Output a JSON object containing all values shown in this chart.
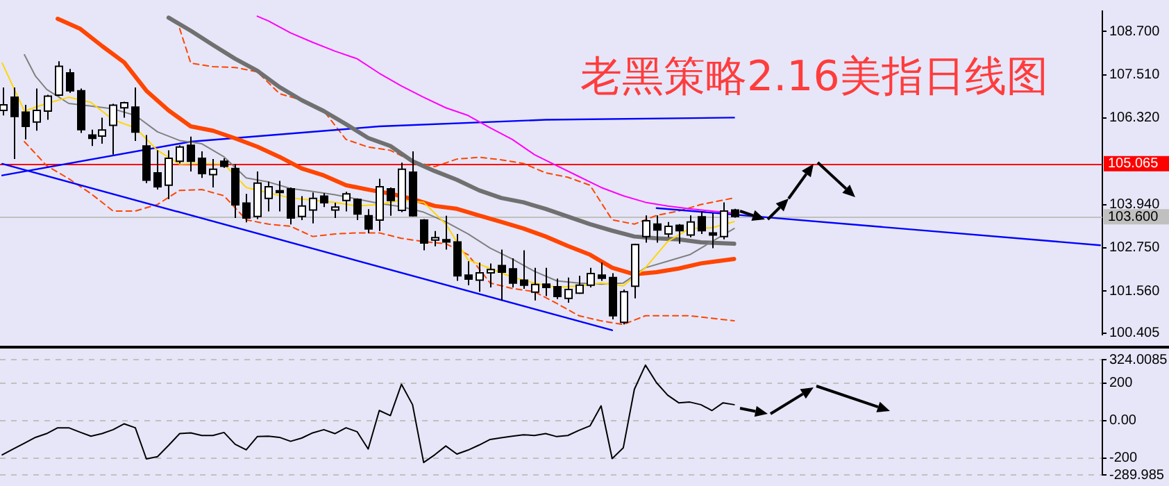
{
  "chart_data": [
    {
      "type": "candlestick",
      "title": "老黑策略2.16美指日线图",
      "categories": [
        null,
        null,
        null,
        null,
        null,
        null,
        null,
        null,
        null,
        null,
        null,
        null,
        null,
        null,
        null,
        null,
        null,
        null,
        null,
        null,
        null,
        null,
        null,
        null,
        null,
        null,
        null,
        null,
        null,
        null,
        null,
        null,
        null,
        null,
        null,
        null,
        null,
        null,
        null,
        null,
        null,
        null,
        null,
        null,
        null,
        null,
        null,
        null,
        null,
        null,
        null,
        null,
        null,
        null,
        null,
        null,
        null,
        null,
        null,
        null,
        null,
        null,
        null,
        null,
        null,
        null,
        null,
        null,
        null,
        null,
        null,
        null,
        null,
        null,
        null,
        null,
        null,
        null,
        null,
        null,
        null,
        null,
        null,
        null,
        null,
        null,
        null,
        null,
        null,
        null,
        null,
        null,
        null,
        null,
        null,
        null,
        null,
        null,
        null,
        null
      ],
      "ohlc": [
        [
          106.53,
          107.16,
          106.39,
          106.68
        ],
        [
          106.89,
          107.16,
          105.19,
          106.36
        ],
        [
          106.48,
          106.68,
          105.73,
          106.09
        ],
        [
          106.21,
          107.13,
          105.97,
          106.53
        ],
        [
          106.51,
          106.96,
          106.27,
          106.92
        ],
        [
          106.95,
          107.88,
          106.92,
          107.74
        ],
        [
          107.56,
          107.67,
          107.01,
          107.07
        ],
        [
          107.07,
          107.13,
          105.91,
          106.0
        ],
        [
          105.85,
          106.0,
          105.55,
          105.76
        ],
        [
          105.82,
          106.33,
          105.61,
          105.99
        ],
        [
          106.12,
          106.71,
          105.31,
          106.67
        ],
        [
          106.6,
          106.77,
          106.33,
          106.74
        ],
        [
          106.62,
          107.16,
          105.69,
          105.93
        ],
        [
          105.55,
          105.85,
          104.53,
          104.61
        ],
        [
          104.81,
          105.43,
          104.35,
          104.43
        ],
        [
          104.47,
          105.43,
          104.09,
          105.21
        ],
        [
          105.13,
          105.57,
          105.07,
          105.52
        ],
        [
          105.57,
          105.81,
          104.85,
          105.13
        ],
        [
          105.21,
          105.4,
          104.67,
          104.79
        ],
        [
          104.76,
          105.19,
          104.41,
          104.91
        ],
        [
          105.13,
          105.21,
          104.95,
          104.99
        ],
        [
          104.93,
          105.05,
          103.57,
          103.93
        ],
        [
          103.98,
          104.23,
          103.45,
          103.57
        ],
        [
          103.61,
          104.85,
          103.54,
          104.53
        ],
        [
          104.11,
          104.57,
          103.75,
          104.43
        ],
        [
          104.32,
          104.59,
          103.75,
          104.27
        ],
        [
          104.37,
          104.41,
          103.39,
          103.57
        ],
        [
          103.61,
          104.17,
          103.51,
          103.9
        ],
        [
          103.79,
          104.27,
          103.42,
          104.11
        ],
        [
          104.17,
          104.25,
          103.87,
          103.99
        ],
        [
          103.79,
          103.99,
          103.57,
          103.87
        ],
        [
          104.05,
          104.29,
          103.75,
          104.23
        ],
        [
          104.08,
          104.11,
          103.51,
          103.68
        ],
        [
          103.63,
          103.81,
          103.15,
          103.27
        ],
        [
          103.51,
          104.65,
          103.21,
          104.43
        ],
        [
          104.37,
          104.41,
          103.63,
          104.05
        ],
        [
          103.78,
          105.09,
          103.73,
          104.91
        ],
        [
          104.83,
          105.4,
          103.61,
          103.63
        ],
        [
          103.51,
          103.54,
          102.68,
          102.88
        ],
        [
          102.96,
          103.21,
          102.79,
          103.03
        ],
        [
          102.97,
          103.63,
          102.7,
          102.91
        ],
        [
          102.91,
          103.13,
          101.84,
          101.98
        ],
        [
          102.0,
          102.38,
          101.72,
          101.89
        ],
        [
          101.86,
          102.34,
          101.54,
          102.06
        ],
        [
          102.06,
          102.32,
          101.66,
          102.15
        ],
        [
          102.26,
          102.7,
          101.3,
          102.08
        ],
        [
          102.17,
          102.46,
          101.66,
          101.78
        ],
        [
          101.86,
          102.68,
          101.62,
          101.72
        ],
        [
          101.53,
          102.2,
          101.3,
          101.74
        ],
        [
          101.75,
          102.2,
          101.42,
          101.66
        ],
        [
          101.68,
          101.9,
          101.34,
          101.41
        ],
        [
          101.36,
          101.93,
          101.24,
          101.6
        ],
        [
          101.5,
          101.98,
          101.48,
          101.72
        ],
        [
          101.72,
          102.2,
          101.66,
          102.04
        ],
        [
          102.0,
          102.34,
          101.84,
          101.91
        ],
        [
          101.93,
          102.05,
          100.78,
          100.88
        ],
        [
          100.7,
          101.6,
          100.64,
          101.54
        ],
        [
          101.69,
          102.86,
          101.36,
          102.84
        ],
        [
          103.06,
          103.64,
          102.89,
          103.49
        ],
        [
          103.4,
          103.64,
          102.89,
          103.24
        ],
        [
          103.13,
          103.46,
          103.04,
          103.34
        ],
        [
          103.37,
          103.4,
          102.86,
          103.22
        ],
        [
          103.1,
          103.64,
          103.04,
          103.46
        ],
        [
          103.6,
          103.76,
          103.13,
          103.22
        ],
        [
          103.16,
          103.7,
          102.74,
          103.1
        ],
        [
          103.06,
          104.0,
          102.98,
          103.76
        ],
        [
          103.79,
          103.82,
          103.58,
          103.61
        ],
        null,
        null,
        null,
        null,
        null,
        null,
        null,
        null,
        null,
        null,
        null,
        null,
        null,
        null,
        null,
        null,
        null,
        null,
        null,
        null,
        null,
        null,
        null,
        null,
        null,
        null,
        null,
        null,
        null,
        null,
        null,
        null,
        null
      ],
      "series": [
        {
          "type": "line",
          "color": "#ffd700",
          "values": [
            107.83,
            null,
            106.51,
            null,
            106.72,
            null,
            106.89,
            null,
            106.75,
            null,
            106.27,
            null,
            106.05,
            null,
            105.43,
            null,
            105.05,
            null,
            105.07,
            null,
            105.05,
            null,
            104.41,
            null,
            104.26,
            null,
            104.12,
            null,
            104.06,
            null,
            104.0,
            null,
            103.9,
            null,
            103.94,
            null,
            104.06,
            null,
            104.0,
            null,
            103.4,
            null,
            102.42,
            null,
            102.18,
            null,
            101.94,
            null,
            101.78,
            null,
            101.66,
            null,
            101.7,
            null,
            101.78,
            null,
            101.7,
            null,
            102.2,
            null,
            102.92,
            null,
            103.28,
            null,
            103.3,
            null,
            103.47,
            null,
            null,
            null,
            null,
            null,
            null,
            null,
            null,
            null,
            null,
            null,
            null,
            null,
            null,
            null,
            null,
            null,
            null,
            null,
            null,
            null,
            null,
            null,
            null,
            null,
            null,
            null,
            null,
            null,
            null,
            null,
            null,
            null
          ]
        },
        {
          "type": "line",
          "color": "#808080",
          "values": [
            null,
            null,
            108.06,
            107.47,
            107.11,
            null,
            106.72,
            null,
            106.65,
            null,
            106.57,
            null,
            106.39,
            null,
            105.94,
            null,
            105.7,
            null,
            105.61,
            null,
            105.25,
            null,
            104.67,
            null,
            104.56,
            null,
            104.38,
            null,
            104.3,
            null,
            104.21,
            null,
            104.09,
            null,
            103.97,
            null,
            103.88,
            null,
            103.73,
            null,
            103.46,
            null,
            103.13,
            null,
            102.74,
            null,
            102.44,
            null,
            102.1,
            null,
            101.84,
            null,
            101.78,
            null,
            101.75,
            null,
            101.78,
            null,
            102.2,
            null,
            102.38,
            null,
            102.56,
            null,
            102.92,
            null,
            103.28,
            null,
            null,
            null,
            null,
            null,
            null,
            null,
            null,
            null,
            null,
            null,
            null,
            null,
            null,
            null,
            null,
            null,
            null,
            null,
            null,
            null,
            null,
            null,
            null,
            null,
            null,
            null,
            null,
            null,
            null,
            null,
            null,
            null
          ]
        },
        {
          "type": "line",
          "color": "#ff4500",
          "values": [
            null,
            null,
            null,
            null,
            null,
            109.05,
            null,
            108.78,
            null,
            108.3,
            null,
            107.85,
            null,
            107.07,
            null,
            106.53,
            null,
            106.09,
            null,
            105.97,
            null,
            105.76,
            null,
            105.53,
            null,
            105.25,
            null,
            104.93,
            null,
            104.74,
            null,
            104.47,
            null,
            104.35,
            null,
            104.24,
            null,
            104.09,
            null,
            103.9,
            null,
            103.82,
            null,
            103.64,
            null,
            103.46,
            null,
            103.28,
            null,
            103.06,
            null,
            102.8,
            null,
            102.56,
            null,
            102.2,
            null,
            102.02,
            null,
            102.08,
            null,
            102.18,
            null,
            102.32,
            null,
            null,
            102.44,
            null,
            null,
            null,
            null,
            null,
            null,
            null,
            null,
            null,
            null,
            null,
            null,
            null,
            null,
            null,
            null,
            null,
            null,
            null,
            null,
            null,
            null,
            null,
            null,
            null,
            null,
            null,
            null,
            null,
            null,
            null,
            null,
            null
          ]
        },
        {
          "type": "line",
          "color": "#707070",
          "values": [
            null,
            null,
            null,
            null,
            null,
            null,
            null,
            null,
            null,
            null,
            null,
            null,
            null,
            null,
            null,
            109.08,
            null,
            108.72,
            null,
            108.33,
            null,
            107.95,
            null,
            107.62,
            null,
            107.17,
            null,
            106.81,
            null,
            106.51,
            null,
            106.15,
            null,
            105.77,
            null,
            105.55,
            null,
            105.13,
            null,
            104.86,
            null,
            104.62,
            null,
            104.33,
            null,
            104.12,
            null,
            104.0,
            null,
            103.82,
            null,
            103.61,
            null,
            103.4,
            null,
            103.22,
            null,
            103.06,
            null,
            103.01,
            null,
            102.98,
            null,
            102.9,
            null,
            null,
            102.86,
            null,
            null,
            null,
            null,
            null,
            null,
            null,
            null,
            null,
            null,
            null,
            null,
            null,
            null,
            null,
            null,
            null,
            null,
            null,
            null,
            null,
            null,
            null,
            null,
            null,
            null,
            null,
            null,
            null,
            null,
            null,
            null,
            null
          ]
        },
        {
          "type": "line",
          "color": "#ff00ff",
          "values": [
            null,
            null,
            null,
            null,
            null,
            null,
            null,
            null,
            null,
            null,
            null,
            null,
            null,
            null,
            null,
            null,
            null,
            null,
            null,
            null,
            null,
            null,
            null,
            109.12,
            108.99,
            null,
            108.66,
            null,
            108.4,
            null,
            108.16,
            null,
            107.95,
            null,
            107.55,
            null,
            107.2,
            null,
            106.89,
            null,
            106.6,
            null,
            106.39,
            null,
            106.05,
            null,
            105.73,
            null,
            105.31,
            null,
            105.01,
            null,
            104.71,
            null,
            104.41,
            null,
            104.18,
            null,
            104.0,
            null,
            103.9,
            null,
            103.82,
            null,
            103.76,
            null,
            103.7,
            null,
            null,
            null,
            null,
            null,
            null,
            null,
            null,
            null,
            null,
            null,
            null,
            null,
            null,
            null,
            null,
            null,
            null,
            null,
            null,
            null,
            null,
            null,
            null,
            null,
            null,
            null,
            null,
            null,
            null,
            null,
            null,
            null
          ]
        },
        {
          "type": "line",
          "color": "#0000ff",
          "values": [
            104.74,
            null,
            null,
            null,
            null,
            null,
            null,
            null,
            null,
            null,
            null,
            null,
            null,
            null,
            null,
            null,
            null,
            105.67,
            null,
            null,
            null,
            null,
            null,
            null,
            null,
            null,
            null,
            null,
            null,
            null,
            null,
            null,
            null,
            null,
            106.09,
            null,
            null,
            null,
            null,
            null,
            null,
            null,
            null,
            null,
            null,
            null,
            null,
            null,
            null,
            106.27,
            null,
            null,
            null,
            null,
            null,
            null,
            null,
            null,
            null,
            null,
            null,
            null,
            null,
            null,
            null,
            null,
            106.33,
            null,
            null,
            null,
            null,
            null,
            null,
            null,
            null,
            null,
            null,
            null,
            null,
            null,
            null,
            null,
            null,
            null,
            null,
            null,
            null,
            null,
            null,
            null,
            null,
            null,
            null,
            null,
            null,
            null,
            null,
            null,
            null,
            null
          ]
        },
        {
          "type": "line",
          "color": "#0000ff",
          "values": [
            105.06,
            null,
            null,
            null,
            null,
            null,
            null,
            null,
            null,
            null,
            null,
            null,
            null,
            null,
            null,
            null,
            null,
            null,
            null,
            null,
            null,
            null,
            null,
            null,
            null,
            null,
            null,
            null,
            null,
            null,
            null,
            null,
            null,
            null,
            null,
            null,
            null,
            null,
            null,
            null,
            null,
            null,
            null,
            null,
            null,
            null,
            null,
            null,
            null,
            null,
            null,
            null,
            null,
            null,
            null,
            100.48,
            null,
            null,
            null,
            null,
            null,
            null,
            null,
            null,
            null,
            null,
            null,
            null,
            null,
            null,
            null,
            null,
            null,
            null,
            null,
            null,
            null,
            null,
            null,
            null,
            null,
            null,
            null,
            null,
            null,
            null,
            null,
            null,
            null,
            null,
            null,
            null,
            null,
            null,
            null,
            null,
            null,
            null,
            null,
            null
          ]
        },
        {
          "type": "line",
          "color": "#0000ff",
          "values": [
            null,
            null,
            null,
            null,
            null,
            null,
            null,
            null,
            null,
            null,
            null,
            null,
            null,
            null,
            null,
            null,
            null,
            null,
            null,
            null,
            null,
            null,
            null,
            null,
            null,
            null,
            null,
            null,
            null,
            null,
            null,
            null,
            null,
            null,
            null,
            null,
            null,
            null,
            null,
            null,
            null,
            null,
            null,
            null,
            null,
            null,
            null,
            null,
            null,
            null,
            null,
            null,
            null,
            null,
            null,
            null,
            null,
            null,
            null,
            103.84,
            null,
            null,
            null,
            null,
            null,
            null,
            null,
            null,
            null,
            null,
            null,
            null,
            null,
            null,
            null,
            null,
            null,
            null,
            null,
            null,
            null,
            null,
            null,
            null,
            null,
            null,
            null,
            null,
            null,
            null,
            null,
            null,
            null,
            null,
            null,
            null,
            null,
            null,
            null,
            102.82
          ]
        },
        {
          "type": "line",
          "color": "#ff4500",
          "line_style": "dashed",
          "values": [
            null,
            null,
            null,
            null,
            null,
            null,
            null,
            null,
            null,
            null,
            null,
            null,
            null,
            null,
            null,
            null,
            108.78,
            107.83,
            null,
            107.73,
            null,
            107.71,
            null,
            107.59,
            null,
            106.99,
            null,
            106.81,
            null,
            106.51,
            null,
            105.73,
            null,
            105.52,
            null,
            105.43,
            null,
            105.13,
            null,
            104.98,
            null,
            105.19,
            null,
            105.24,
            null,
            105.17,
            null,
            105.07,
            null,
            104.81,
            null,
            104.69,
            null,
            104.47,
            null,
            103.52,
            null,
            103.4,
            null,
            103.64,
            null,
            103.76,
            null,
            103.94,
            null,
            null,
            104.12,
            null,
            null,
            null,
            null,
            null,
            null,
            null,
            null,
            null,
            null,
            null,
            null,
            null,
            null,
            null,
            null,
            null,
            null,
            null,
            null,
            null,
            null,
            null,
            null,
            null,
            null,
            null,
            null,
            null,
            null,
            null,
            null,
            null
          ]
        },
        {
          "type": "line",
          "color": "#ff4500",
          "line_style": "dashed",
          "values": [
            null,
            null,
            105.67,
            null,
            105.01,
            null,
            104.65,
            null,
            104.24,
            null,
            103.76,
            null,
            103.76,
            null,
            103.94,
            null,
            104.33,
            null,
            104.35,
            null,
            104.18,
            null,
            103.52,
            null,
            103.4,
            null,
            103.34,
            null,
            103.06,
            null,
            103.13,
            null,
            103.16,
            null,
            103.16,
            null,
            103.01,
            null,
            102.92,
            null,
            102.86,
            null,
            102.56,
            null,
            101.78,
            null,
            101.63,
            null,
            101.54,
            null,
            101.22,
            null,
            100.88,
            null,
            100.74,
            null,
            100.64,
            null,
            100.88,
            null,
            null,
            null,
            100.88,
            null,
            null,
            null,
            100.74,
            null,
            null,
            null,
            null,
            null,
            null,
            null,
            null,
            null,
            null,
            null,
            null,
            null,
            null,
            null,
            null,
            null,
            null,
            null,
            null,
            null,
            null,
            null,
            null,
            null,
            null,
            null,
            null,
            null,
            null,
            null,
            null,
            null
          ]
        }
      ],
      "ylim": [
        100.36,
        109.26
      ],
      "yticks": [
        {
          "value": 108.7,
          "label": "108.700"
        },
        {
          "value": 107.51,
          "label": "107.510"
        },
        {
          "value": 106.32,
          "label": "106.320"
        },
        {
          "value": 103.94,
          "label": "103.940"
        },
        {
          "value": 102.75,
          "label": "102.750"
        },
        {
          "value": 101.56,
          "label": "101.560"
        },
        100.405
      ],
      "ref_lines": [
        {
          "axis": "y",
          "value": 105.065,
          "label": "105.065",
          "color": "#ff0000"
        },
        {
          "axis": "y",
          "value": 103.6,
          "label": "103.600",
          "color": "#c0c0c0"
        }
      ],
      "tick_labels": "y"
    },
    {
      "type": "line",
      "categories": [
        null,
        null,
        null,
        null,
        null,
        null,
        null,
        null,
        null,
        null,
        null,
        null,
        null,
        null,
        null,
        null,
        null,
        null,
        null,
        null,
        null,
        null,
        null,
        null,
        null,
        null,
        null,
        null,
        null,
        null,
        null,
        null,
        null,
        null,
        null,
        null,
        null,
        null,
        null,
        null,
        null,
        null,
        null,
        null,
        null,
        null,
        null,
        null,
        null,
        null,
        null,
        null,
        null,
        null,
        null,
        null,
        null,
        null,
        null,
        null,
        null,
        null,
        null,
        null,
        null,
        null,
        null,
        null,
        null,
        null,
        null,
        null,
        null,
        null,
        null,
        null,
        null,
        null,
        null,
        null,
        null,
        null,
        null,
        null,
        null,
        null,
        null,
        null,
        null,
        null,
        null,
        null,
        null,
        null,
        null,
        null,
        null,
        null,
        null,
        null
      ],
      "values": [
        -183,
        -152,
        -121,
        -90,
        -70,
        -39,
        -39,
        -62,
        -84,
        -70,
        -49,
        -18,
        -39,
        -205,
        -193,
        -133,
        -70,
        -66,
        -80,
        -80,
        -64,
        -127,
        -156,
        -86,
        -84,
        -90,
        -111,
        -94,
        -66,
        -49,
        -70,
        -39,
        -60,
        -152,
        53,
        26,
        193,
        84,
        -224,
        -183,
        -136,
        -179,
        -158,
        -131,
        -101,
        -92,
        -84,
        -76,
        -80,
        -70,
        -86,
        -80,
        -53,
        -29,
        78,
        -203,
        -146,
        166,
        295,
        201,
        135,
        94,
        98,
        84,
        53,
        94,
        84,
        null,
        null,
        null,
        null,
        null,
        null,
        null,
        null,
        null,
        null,
        null,
        null,
        null,
        null,
        null,
        null,
        null,
        null,
        null,
        null,
        null,
        null,
        null,
        null,
        null,
        null,
        null,
        null,
        null,
        null,
        null,
        null,
        null
      ],
      "color": "#000000",
      "ylim": [
        -289.985,
        324.0085
      ],
      "yticks": [
        324.0085,
        200,
        {
          "value": 0,
          "label": "0.00"
        },
        -200,
        -289.985
      ],
      "grid": "y",
      "tick_labels": "y"
    }
  ]
}
